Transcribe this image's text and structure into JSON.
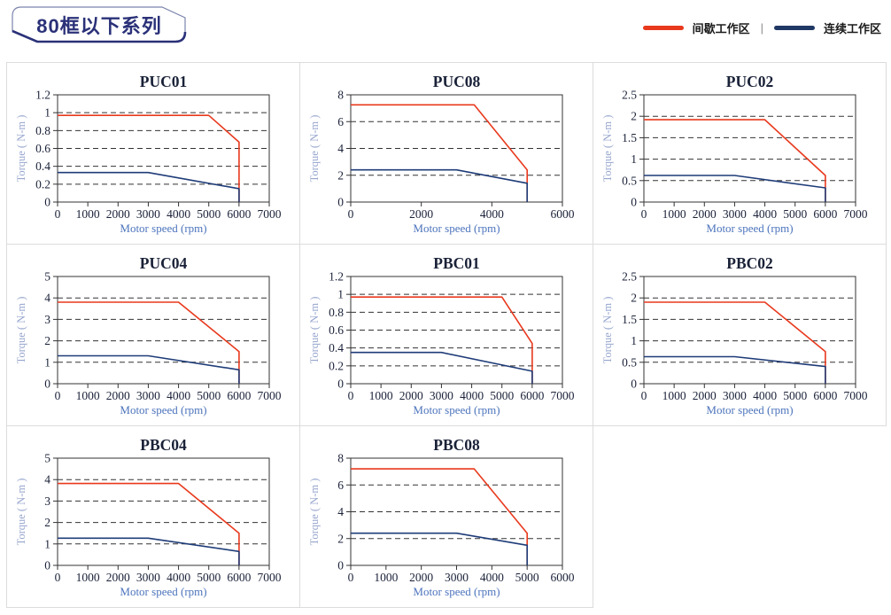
{
  "header": {
    "badge_label": "80框以下系列",
    "legend": [
      {
        "label": "间歇工作区",
        "color": "#E8391D"
      },
      {
        "label": "连续工作区",
        "color": "#1F3864"
      }
    ],
    "legend_separator": "|"
  },
  "colors": {
    "intermittent_line": "#E8391D",
    "continuous_line": "#1F3C78",
    "axis_border": "#333333",
    "tick_label": "#1B2239",
    "chart_title": "#1A2238",
    "xlabel": "#4C74BC",
    "ylabel": "#97A6CE"
  },
  "chart_data": [
    {
      "type": "line",
      "title": "PUC01",
      "xlabel": "Motor speed (rpm)",
      "ylabel": "Torque ( N-m )",
      "xlim": [
        0,
        7000
      ],
      "ylim": [
        0,
        1.2
      ],
      "xticks": [
        0,
        1000,
        2000,
        3000,
        4000,
        5000,
        6000,
        7000
      ],
      "yticks": [
        0,
        0.2,
        0.4,
        0.6,
        0.8,
        1,
        1.2
      ],
      "series": [
        {
          "name": "间歇工作区",
          "color": "#E8391D",
          "points": [
            [
              0,
              0.97
            ],
            [
              5000,
              0.97
            ],
            [
              6000,
              0.67
            ],
            [
              6000,
              0
            ]
          ]
        },
        {
          "name": "连续工作区",
          "color": "#1F3C78",
          "points": [
            [
              0,
              0.33
            ],
            [
              3000,
              0.33
            ],
            [
              6000,
              0.15
            ],
            [
              6000,
              0
            ]
          ]
        }
      ]
    },
    {
      "type": "line",
      "title": "PUC08",
      "xlabel": "Motor speed (rpm)",
      "ylabel": "Torque ( N-m )",
      "xlim": [
        0,
        6000
      ],
      "ylim": [
        0,
        8
      ],
      "xticks": [
        0,
        2000,
        4000,
        6000
      ],
      "yticks": [
        0,
        2,
        4,
        6,
        8
      ],
      "series": [
        {
          "name": "间歇工作区",
          "color": "#E8391D",
          "points": [
            [
              0,
              7.25
            ],
            [
              3500,
              7.25
            ],
            [
              5000,
              2.4
            ],
            [
              5000,
              0
            ]
          ]
        },
        {
          "name": "连续工作区",
          "color": "#1F3C78",
          "points": [
            [
              0,
              2.4
            ],
            [
              3000,
              2.4
            ],
            [
              5000,
              1.4
            ],
            [
              5000,
              0
            ]
          ]
        }
      ]
    },
    {
      "type": "line",
      "title": "PUC02",
      "xlabel": "Motor speed (rpm)",
      "ylabel": "Torque ( N-m )",
      "xlim": [
        0,
        7000
      ],
      "ylim": [
        0,
        2.5
      ],
      "xticks": [
        0,
        1000,
        2000,
        3000,
        4000,
        5000,
        6000,
        7000
      ],
      "yticks": [
        0,
        0.5,
        1,
        1.5,
        2,
        2.5
      ],
      "series": [
        {
          "name": "间歇工作区",
          "color": "#E8391D",
          "points": [
            [
              0,
              1.92
            ],
            [
              4000,
              1.92
            ],
            [
              6000,
              0.62
            ],
            [
              6000,
              0
            ]
          ]
        },
        {
          "name": "连续工作区",
          "color": "#1F3C78",
          "points": [
            [
              0,
              0.62
            ],
            [
              3000,
              0.62
            ],
            [
              6000,
              0.33
            ],
            [
              6000,
              0
            ]
          ]
        }
      ]
    },
    {
      "type": "line",
      "title": "PUC04",
      "xlabel": "Motor speed (rpm)",
      "ylabel": "Torque ( N-m )",
      "xlim": [
        0,
        7000
      ],
      "ylim": [
        0,
        5
      ],
      "xticks": [
        0,
        1000,
        2000,
        3000,
        4000,
        5000,
        6000,
        7000
      ],
      "yticks": [
        0,
        1,
        2,
        3,
        4,
        5
      ],
      "series": [
        {
          "name": "间歇工作区",
          "color": "#E8391D",
          "points": [
            [
              0,
              3.8
            ],
            [
              4000,
              3.8
            ],
            [
              6000,
              1.5
            ],
            [
              6000,
              0
            ]
          ]
        },
        {
          "name": "连续工作区",
          "color": "#1F3C78",
          "points": [
            [
              0,
              1.3
            ],
            [
              3000,
              1.3
            ],
            [
              6000,
              0.65
            ],
            [
              6000,
              0
            ]
          ]
        }
      ]
    },
    {
      "type": "line",
      "title": "PBC01",
      "xlabel": "Motor speed (rpm)",
      "ylabel": "Torque ( N-m )",
      "xlim": [
        0,
        7000
      ],
      "ylim": [
        0,
        1.2
      ],
      "xticks": [
        0,
        1000,
        2000,
        3000,
        4000,
        5000,
        6000,
        7000
      ],
      "yticks": [
        0,
        0.2,
        0.4,
        0.6,
        0.8,
        1,
        1.2
      ],
      "series": [
        {
          "name": "间歇工作区",
          "color": "#E8391D",
          "points": [
            [
              0,
              0.97
            ],
            [
              5000,
              0.97
            ],
            [
              6000,
              0.45
            ],
            [
              6000,
              0
            ]
          ]
        },
        {
          "name": "连续工作区",
          "color": "#1F3C78",
          "points": [
            [
              0,
              0.35
            ],
            [
              3000,
              0.35
            ],
            [
              6000,
              0.14
            ],
            [
              6000,
              0
            ]
          ]
        }
      ]
    },
    {
      "type": "line",
      "title": "PBC02",
      "xlabel": "Motor speed (rpm)",
      "ylabel": "Torque ( N-m )",
      "xlim": [
        0,
        7000
      ],
      "ylim": [
        0,
        2.5
      ],
      "xticks": [
        0,
        1000,
        2000,
        3000,
        4000,
        5000,
        6000,
        7000
      ],
      "yticks": [
        0,
        0.5,
        1,
        1.5,
        2,
        2.5
      ],
      "series": [
        {
          "name": "间歇工作区",
          "color": "#E8391D",
          "points": [
            [
              0,
              1.9
            ],
            [
              4000,
              1.9
            ],
            [
              6000,
              0.75
            ],
            [
              6000,
              0
            ]
          ]
        },
        {
          "name": "连续工作区",
          "color": "#1F3C78",
          "points": [
            [
              0,
              0.63
            ],
            [
              3000,
              0.63
            ],
            [
              6000,
              0.4
            ],
            [
              6000,
              0
            ]
          ]
        }
      ]
    },
    {
      "type": "line",
      "title": "PBC04",
      "xlabel": "Motor speed (rpm)",
      "ylabel": "Torque ( N-m )",
      "xlim": [
        0,
        7000
      ],
      "ylim": [
        0,
        5
      ],
      "xticks": [
        0,
        1000,
        2000,
        3000,
        4000,
        5000,
        6000,
        7000
      ],
      "yticks": [
        0,
        1,
        2,
        3,
        4,
        5
      ],
      "series": [
        {
          "name": "间歇工作区",
          "color": "#E8391D",
          "points": [
            [
              0,
              3.82
            ],
            [
              4000,
              3.82
            ],
            [
              6000,
              1.5
            ],
            [
              6000,
              0
            ]
          ]
        },
        {
          "name": "连续工作区",
          "color": "#1F3C78",
          "points": [
            [
              0,
              1.27
            ],
            [
              3000,
              1.27
            ],
            [
              6000,
              0.65
            ],
            [
              6000,
              0
            ]
          ]
        }
      ]
    },
    {
      "type": "line",
      "title": "PBC08",
      "xlabel": "Motor speed (rpm)",
      "ylabel": "Torque ( N-m )",
      "xlim": [
        0,
        6000
      ],
      "ylim": [
        0,
        8
      ],
      "xticks": [
        0,
        1000,
        2000,
        3000,
        4000,
        5000,
        6000
      ],
      "yticks": [
        0,
        2,
        4,
        6,
        8
      ],
      "series": [
        {
          "name": "间歇工作区",
          "color": "#E8391D",
          "points": [
            [
              0,
              7.2
            ],
            [
              3500,
              7.2
            ],
            [
              5000,
              2.4
            ],
            [
              5000,
              0
            ]
          ]
        },
        {
          "name": "连续工作区",
          "color": "#1F3C78",
          "points": [
            [
              0,
              2.4
            ],
            [
              3000,
              2.4
            ],
            [
              5000,
              1.5
            ],
            [
              5000,
              0
            ]
          ]
        }
      ]
    }
  ]
}
